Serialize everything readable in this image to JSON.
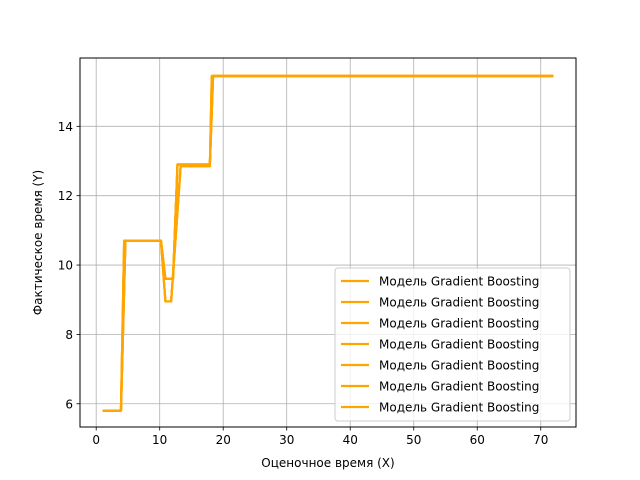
{
  "chart_data": {
    "type": "line",
    "xlabel": "Оценочное время (X)",
    "ylabel": "Фактическое время (Y)",
    "xlim": [
      -2.55,
      75.55
    ],
    "ylim": [
      5.33,
      15.97
    ],
    "xticks": [
      0,
      10,
      20,
      30,
      40,
      50,
      60,
      70
    ],
    "yticks": [
      6,
      8,
      10,
      12,
      14
    ],
    "grid": true,
    "legend_position": "lower right",
    "line_color": "#ffa500",
    "series": [
      {
        "name": "Модель Gradient Boosting",
        "x": [
          1,
          3.9,
          4.6,
          10.2,
          10.9,
          12.1,
          12.8,
          17.9,
          18.4,
          72
        ],
        "y": [
          5.8,
          5.8,
          10.7,
          10.7,
          9.6,
          9.6,
          12.9,
          12.9,
          15.45,
          15.45
        ]
      },
      {
        "name": "Модель Gradient Boosting",
        "x": [
          1,
          3.9,
          4.6,
          10.2,
          10.9,
          12.1,
          12.8,
          17.9,
          18.4,
          72
        ],
        "y": [
          5.8,
          5.8,
          10.7,
          10.7,
          9.6,
          9.6,
          12.9,
          12.9,
          15.45,
          15.45
        ]
      },
      {
        "name": "Модель Gradient Boosting",
        "x": [
          1,
          3.9,
          4.6,
          10.2,
          10.9,
          12.1,
          12.8,
          17.9,
          18.4,
          72
        ],
        "y": [
          5.8,
          5.8,
          10.7,
          10.7,
          9.6,
          9.6,
          12.9,
          12.9,
          15.45,
          15.45
        ]
      },
      {
        "name": "Модель Gradient Boosting",
        "x": [
          1,
          3.9,
          4.6,
          10.2,
          10.9,
          12.1,
          12.8,
          17.9,
          18.4,
          72
        ],
        "y": [
          5.8,
          5.8,
          10.7,
          10.7,
          9.6,
          9.6,
          12.9,
          12.9,
          15.45,
          15.45
        ]
      },
      {
        "name": "Модель Gradient Boosting",
        "x": [
          1,
          3.9,
          4.4,
          10.2,
          10.9,
          11.8,
          13.3,
          17.9,
          18.2,
          72
        ],
        "y": [
          5.8,
          5.8,
          10.7,
          10.7,
          8.95,
          8.95,
          12.85,
          12.85,
          15.45,
          15.45
        ]
      },
      {
        "name": "Модель Gradient Boosting",
        "x": [
          1,
          3.9,
          4.4,
          10.2,
          10.9,
          11.8,
          13.3,
          17.9,
          18.2,
          72
        ],
        "y": [
          5.8,
          5.8,
          10.7,
          10.7,
          8.95,
          8.95,
          12.85,
          12.85,
          15.45,
          15.45
        ]
      },
      {
        "name": "Модель Gradient Boosting",
        "x": [
          1,
          3.9,
          4.4,
          10.2,
          10.9,
          11.8,
          13.3,
          17.9,
          18.2,
          72
        ],
        "y": [
          5.8,
          5.8,
          10.7,
          10.7,
          8.95,
          8.95,
          12.85,
          12.85,
          15.45,
          15.45
        ]
      }
    ]
  }
}
